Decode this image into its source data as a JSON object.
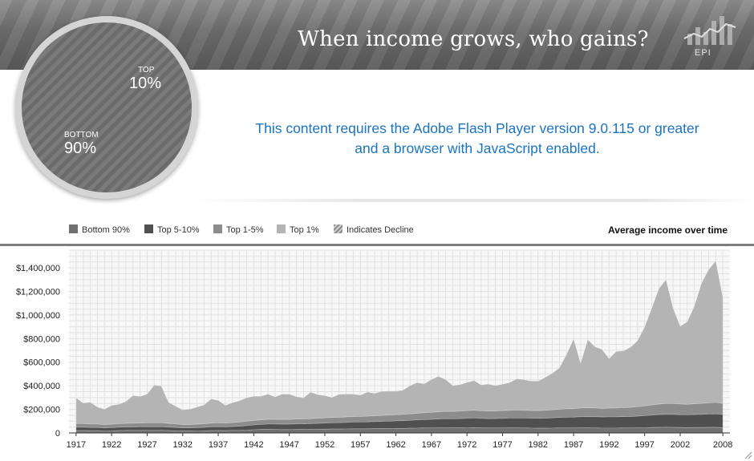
{
  "header": {
    "title": "When income grows, who gains?",
    "logo_text": "EPI"
  },
  "pie": {
    "top_label": "TOP",
    "top_value": "10%",
    "bottom_label": "BOTTOM",
    "bottom_value": "90%"
  },
  "flash_message": {
    "line1": "This content requires the Adobe Flash Player version 9.0.115 or greater",
    "line2": "and a browser with JavaScript enabled."
  },
  "legend": [
    {
      "label": "Bottom 90%",
      "color": "#707070"
    },
    {
      "label": "Top 5-10%",
      "color": "#505050"
    },
    {
      "label": "Top 1-5%",
      "color": "#8c8c8c"
    },
    {
      "label": "Top 1%",
      "color": "#b4b4b4"
    },
    {
      "label": "Indicates Decline",
      "color": "#9a9a9a",
      "icon": "hatch-icon"
    }
  ],
  "chart_title": "Average income over time",
  "chart_data": {
    "type": "area",
    "stacked": true,
    "x": [
      1917,
      1918,
      1919,
      1920,
      1921,
      1922,
      1923,
      1924,
      1925,
      1926,
      1927,
      1928,
      1929,
      1930,
      1931,
      1932,
      1933,
      1934,
      1935,
      1936,
      1937,
      1938,
      1939,
      1940,
      1941,
      1942,
      1943,
      1944,
      1945,
      1946,
      1947,
      1948,
      1949,
      1950,
      1951,
      1952,
      1953,
      1954,
      1955,
      1956,
      1957,
      1958,
      1959,
      1960,
      1961,
      1962,
      1963,
      1964,
      1965,
      1966,
      1967,
      1968,
      1969,
      1970,
      1971,
      1972,
      1973,
      1974,
      1975,
      1976,
      1977,
      1978,
      1979,
      1980,
      1981,
      1982,
      1983,
      1984,
      1985,
      1986,
      1987,
      1988,
      1989,
      1990,
      1991,
      1992,
      1993,
      1994,
      1995,
      1996,
      1997,
      1998,
      1999,
      2000,
      2001,
      2002,
      2003,
      2004,
      2005,
      2006,
      2007,
      2008
    ],
    "series": [
      {
        "name": "Bottom 90%",
        "values": [
          20000,
          20000,
          19000,
          19000,
          17000,
          18000,
          20000,
          21000,
          21000,
          22000,
          22000,
          22000,
          22000,
          20000,
          18000,
          16000,
          16000,
          17000,
          18000,
          20000,
          21000,
          20000,
          21000,
          22000,
          24000,
          27000,
          29000,
          30000,
          29000,
          28000,
          28000,
          29000,
          29000,
          30000,
          31000,
          32000,
          33000,
          33000,
          34000,
          35000,
          35000,
          35000,
          36000,
          37000,
          37000,
          38000,
          39000,
          40000,
          41000,
          42000,
          42000,
          43000,
          44000,
          43000,
          43000,
          44000,
          45000,
          43000,
          42000,
          42000,
          42000,
          43000,
          43000,
          42000,
          41000,
          40000,
          40000,
          41000,
          42000,
          42000,
          42000,
          43000,
          43000,
          42000,
          41000,
          41000,
          41000,
          42000,
          42000,
          43000,
          44000,
          46000,
          47000,
          48000,
          47000,
          46000,
          45000,
          46000,
          46000,
          47000,
          47000,
          45000
        ]
      },
      {
        "name": "Top 5-10%",
        "values": [
          28000,
          28000,
          27000,
          27000,
          26000,
          27000,
          28000,
          29000,
          29000,
          29000,
          30000,
          30000,
          30000,
          29000,
          28000,
          27000,
          27000,
          28000,
          29000,
          31000,
          32000,
          32000,
          33000,
          35000,
          38000,
          41000,
          43000,
          45000,
          46000,
          46000,
          46000,
          47000,
          48000,
          49000,
          50000,
          51000,
          53000,
          54000,
          55000,
          57000,
          58000,
          59000,
          60000,
          61000,
          62000,
          64000,
          65000,
          67000,
          69000,
          71000,
          73000,
          75000,
          77000,
          77000,
          78000,
          80000,
          82000,
          80000,
          79000,
          80000,
          81000,
          83000,
          84000,
          84000,
          84000,
          84000,
          85000,
          87000,
          89000,
          91000,
          92000,
          94000,
          95000,
          95000,
          94000,
          95000,
          95000,
          96000,
          97000,
          99000,
          102000,
          105000,
          108000,
          110000,
          110000,
          109000,
          109000,
          110000,
          111000,
          113000,
          114000,
          112000
        ]
      },
      {
        "name": "Top 1-5%",
        "values": [
          30000,
          30000,
          29000,
          29000,
          28000,
          29000,
          30000,
          31000,
          32000,
          33000,
          33000,
          34000,
          34000,
          32000,
          30000,
          28000,
          28000,
          29000,
          30000,
          32000,
          33000,
          32000,
          33000,
          35000,
          37000,
          38000,
          39000,
          40000,
          40000,
          40000,
          40000,
          41000,
          41000,
          42000,
          43000,
          44000,
          45000,
          45000,
          46000,
          47000,
          47000,
          48000,
          49000,
          50000,
          51000,
          52000,
          53000,
          55000,
          56000,
          58000,
          59000,
          61000,
          62000,
          62000,
          63000,
          64000,
          66000,
          64000,
          63000,
          64000,
          65000,
          66000,
          67000,
          66000,
          65000,
          65000,
          66000,
          68000,
          70000,
          71000,
          72000,
          74000,
          75000,
          74000,
          73000,
          74000,
          75000,
          77000,
          78000,
          80000,
          83000,
          86000,
          89000,
          92000,
          92000,
          90000,
          89000,
          91000,
          93000,
          95000,
          97000,
          94000
        ]
      },
      {
        "name": "Top 1%",
        "values": [
          220000,
          175000,
          185000,
          145000,
          130000,
          160000,
          165000,
          185000,
          235000,
          225000,
          245000,
          320000,
          310000,
          180000,
          150000,
          125000,
          130000,
          145000,
          160000,
          205000,
          190000,
          150000,
          170000,
          180000,
          200000,
          205000,
          200000,
          215000,
          190000,
          215000,
          215000,
          190000,
          180000,
          225000,
          200000,
          190000,
          170000,
          195000,
          195000,
          190000,
          180000,
          205000,
          190000,
          205000,
          205000,
          200000,
          205000,
          240000,
          260000,
          245000,
          280000,
          300000,
          270000,
          220000,
          225000,
          240000,
          250000,
          220000,
          230000,
          215000,
          225000,
          235000,
          265000,
          260000,
          250000,
          250000,
          280000,
          310000,
          350000,
          460000,
          590000,
          380000,
          580000,
          520000,
          500000,
          420000,
          480000,
          480000,
          510000,
          560000,
          670000,
          820000,
          980000,
          1050000,
          810000,
          660000,
          700000,
          830000,
          1020000,
          1130000,
          1200000,
          900000
        ]
      }
    ],
    "y_ticks": [
      "$1,400,000",
      "$1,200,000",
      "$1,000,000",
      "$800,000",
      "$600,000",
      "$400,000",
      "$200,000",
      "0"
    ],
    "y_tick_values": [
      1400000,
      1200000,
      1000000,
      800000,
      600000,
      400000,
      200000,
      0
    ],
    "x_ticks": [
      1917,
      1922,
      1927,
      1932,
      1937,
      1942,
      1947,
      1952,
      1957,
      1962,
      1967,
      1972,
      1977,
      1982,
      1987,
      1992,
      1997,
      2002,
      2008
    ],
    "ylim": [
      0,
      1550000
    ],
    "xlim": [
      1916,
      2009
    ],
    "grid": true,
    "legend_position": "top"
  }
}
